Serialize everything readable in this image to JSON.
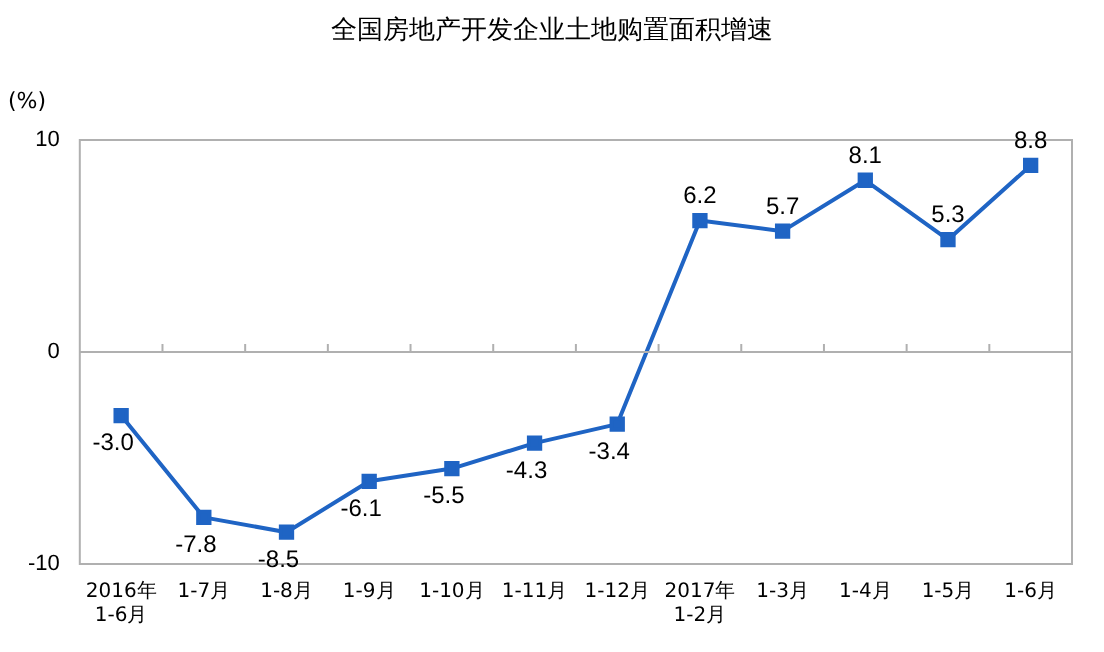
{
  "chart_data": {
    "type": "line",
    "title": "全国房地产开发企业土地购置面积增速",
    "ylabel": "(%)",
    "categories": [
      "2016年\n1-6月",
      "1-7月",
      "1-8月",
      "1-9月",
      "1-10月",
      "1-11月",
      "1-12月",
      "2017年\n1-2月",
      "1-3月",
      "1-4月",
      "1-5月",
      "1-6月"
    ],
    "series": [
      {
        "color": "#1f64c4",
        "values": [
          -3.0,
          -7.8,
          -8.5,
          -6.1,
          -5.5,
          -4.3,
          -3.4,
          6.2,
          5.7,
          8.1,
          5.3,
          8.8
        ],
        "value_labels": [
          "-3.0",
          "-7.8",
          "-8.5",
          "-6.1",
          "-5.5",
          "-4.3",
          "-3.4",
          "6.2",
          "5.7",
          "8.1",
          "5.3",
          "8.8"
        ]
      }
    ],
    "ylim": [
      -10,
      10
    ],
    "yticks": [
      -10,
      0,
      10
    ],
    "grid": false,
    "legend": false,
    "marker": "square",
    "line_style": "solid",
    "ref_lines": [
      {
        "axis": "y",
        "value": 0,
        "color": "#b0b0b0"
      }
    ]
  }
}
